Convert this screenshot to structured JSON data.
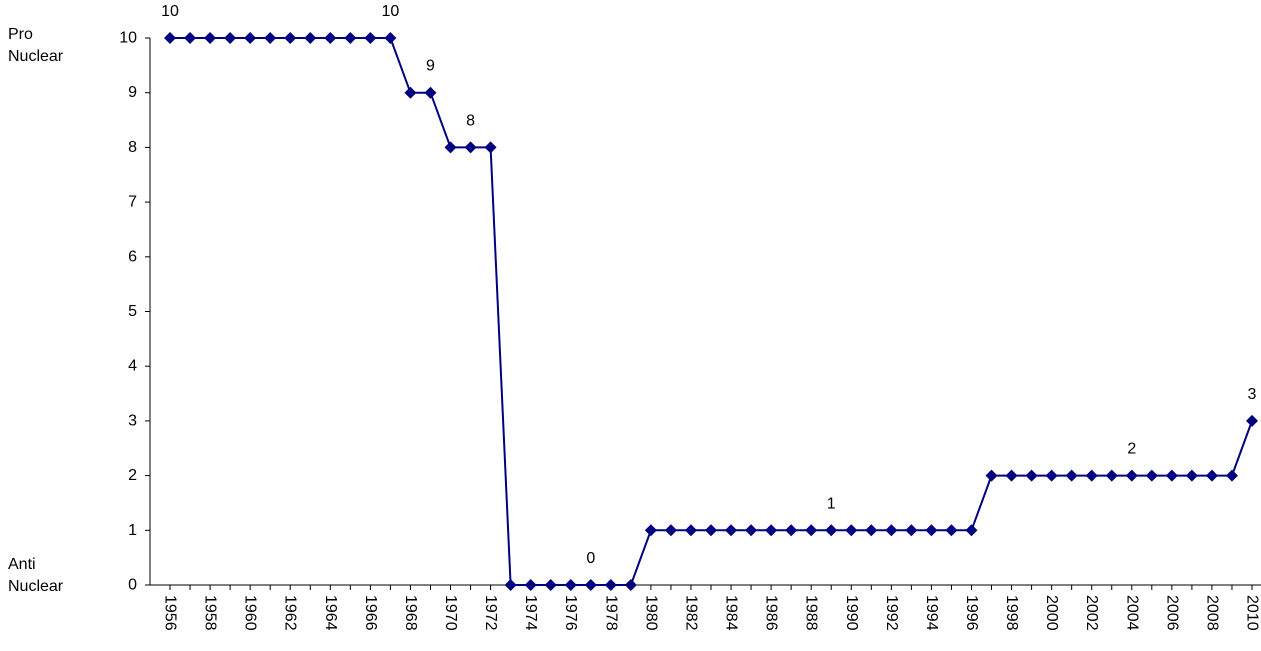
{
  "chart_data": {
    "type": "line",
    "title": "",
    "xlabel": "",
    "ylabel": "",
    "x": [
      1956,
      1957,
      1958,
      1959,
      1960,
      1961,
      1962,
      1963,
      1964,
      1965,
      1966,
      1967,
      1968,
      1969,
      1970,
      1971,
      1972,
      1973,
      1974,
      1975,
      1976,
      1977,
      1978,
      1979,
      1980,
      1981,
      1982,
      1983,
      1984,
      1985,
      1986,
      1987,
      1988,
      1989,
      1990,
      1991,
      1992,
      1993,
      1994,
      1995,
      1996,
      1997,
      1998,
      1999,
      2000,
      2001,
      2002,
      2003,
      2004,
      2005,
      2006,
      2007,
      2008,
      2009,
      2010
    ],
    "values": [
      10,
      10,
      10,
      10,
      10,
      10,
      10,
      10,
      10,
      10,
      10,
      10,
      9,
      9,
      8,
      8,
      8,
      0,
      0,
      0,
      0,
      0,
      0,
      0,
      1,
      1,
      1,
      1,
      1,
      1,
      1,
      1,
      1,
      1,
      1,
      1,
      1,
      1,
      1,
      1,
      1,
      2,
      2,
      2,
      2,
      2,
      2,
      2,
      2,
      2,
      2,
      2,
      2,
      2,
      3
    ],
    "x_tick_labels": [
      "1956",
      "1958",
      "1960",
      "1962",
      "1964",
      "1966",
      "1968",
      "1970",
      "1972",
      "1974",
      "1976",
      "1978",
      "1980",
      "1982",
      "1984",
      "1986",
      "1988",
      "1990",
      "1992",
      "1994",
      "1996",
      "1998",
      "2000",
      "2002",
      "2004",
      "2006",
      "2008",
      "2010"
    ],
    "y_tick_labels": [
      "0",
      "1",
      "2",
      "3",
      "4",
      "5",
      "6",
      "7",
      "8",
      "9",
      "10"
    ],
    "ylim": [
      0,
      10
    ],
    "y_top_label": [
      "Pro",
      "Nuclear"
    ],
    "y_bottom_label": [
      "Anti",
      "Nuclear"
    ],
    "annotations": [
      {
        "text": "10",
        "x": 1956,
        "y": 10
      },
      {
        "text": "10",
        "x": 1967,
        "y": 10
      },
      {
        "text": "9",
        "x": 1969,
        "y": 9
      },
      {
        "text": "8",
        "x": 1971,
        "y": 8
      },
      {
        "text": "0",
        "x": 1977,
        "y": 0
      },
      {
        "text": "1",
        "x": 1989,
        "y": 1
      },
      {
        "text": "2",
        "x": 2004,
        "y": 2
      },
      {
        "text": "3",
        "x": 2010,
        "y": 3
      }
    ],
    "grid": false,
    "legend": "none",
    "marker": "diamond",
    "line_color": "#000080",
    "marker_color": "#000080",
    "axis_color": "#000000"
  }
}
